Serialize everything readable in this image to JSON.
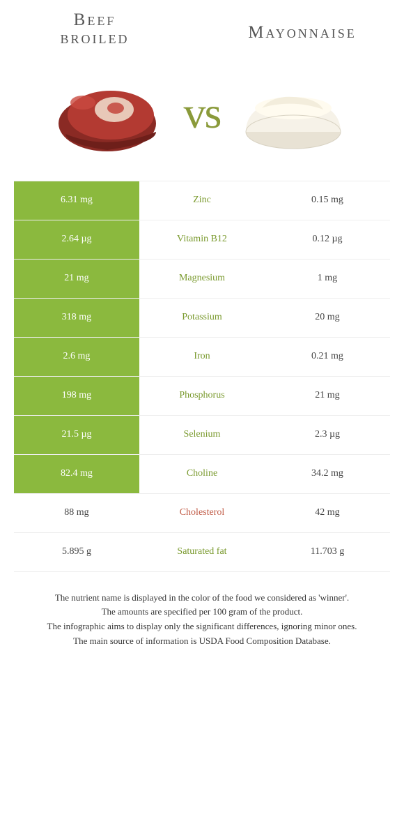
{
  "header": {
    "left_line1": "Beef",
    "left_line2": "broiled",
    "right": "Mayonnaise",
    "vs": "vs"
  },
  "colors": {
    "green_bg": "#8bb93e",
    "green_text": "#7a9a2e",
    "red_text": "#c05a45",
    "row_border": "#eeeeee",
    "vs_color": "#8a9a3a"
  },
  "rows": [
    {
      "left": "6.31 mg",
      "label": "Zinc",
      "right": "0.15 mg",
      "winner": "left",
      "label_color": "green"
    },
    {
      "left": "2.64 µg",
      "label": "Vitamin B12",
      "right": "0.12 µg",
      "winner": "left",
      "label_color": "green"
    },
    {
      "left": "21 mg",
      "label": "Magnesium",
      "right": "1 mg",
      "winner": "left",
      "label_color": "green"
    },
    {
      "left": "318 mg",
      "label": "Potassium",
      "right": "20 mg",
      "winner": "left",
      "label_color": "green"
    },
    {
      "left": "2.6 mg",
      "label": "Iron",
      "right": "0.21 mg",
      "winner": "left",
      "label_color": "green"
    },
    {
      "left": "198 mg",
      "label": "Phosphorus",
      "right": "21 mg",
      "winner": "left",
      "label_color": "green"
    },
    {
      "left": "21.5 µg",
      "label": "Selenium",
      "right": "2.3 µg",
      "winner": "left",
      "label_color": "green"
    },
    {
      "left": "82.4 mg",
      "label": "Choline",
      "right": "34.2 mg",
      "winner": "left",
      "label_color": "green"
    },
    {
      "left": "88 mg",
      "label": "Cholesterol",
      "right": "42 mg",
      "winner": "none",
      "label_color": "red"
    },
    {
      "left": "5.895 g",
      "label": "Saturated fat",
      "right": "11.703 g",
      "winner": "none",
      "label_color": "green"
    }
  ],
  "footnotes": [
    "The nutrient name is displayed in the color of the food we considered as 'winner'.",
    "The amounts are specified per 100 gram of the product.",
    "The infographic aims to display only the significant differences, ignoring minor ones.",
    "The main source of information is USDA Food Composition Database."
  ]
}
